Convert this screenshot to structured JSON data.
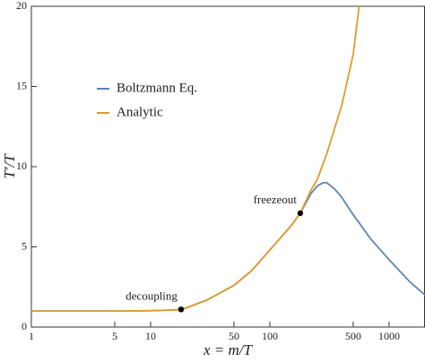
{
  "chart_data": {
    "type": "line",
    "xlabel": "x = m/T",
    "ylabel": "T′/T",
    "xscale": "log",
    "xlim": [
      1,
      2000
    ],
    "xticks": [
      1,
      5,
      10,
      50,
      100,
      500,
      1000
    ],
    "ylim": [
      0,
      20
    ],
    "yticks": [
      0,
      5,
      10,
      15,
      20
    ],
    "legend": "upper left",
    "x": [
      1,
      5,
      10,
      15,
      18,
      20,
      30,
      50,
      70,
      100,
      150,
      180,
      220,
      250,
      280,
      300,
      350,
      400,
      500,
      560,
      700,
      1000,
      1500,
      2000
    ],
    "series": [
      {
        "name": "Boltzmann Eq.",
        "color": "#5b84b8",
        "values": [
          1,
          1,
          1.02,
          1.06,
          1.1,
          1.2,
          1.7,
          2.6,
          3.5,
          4.8,
          6.3,
          7.1,
          8.3,
          8.8,
          9.0,
          9.0,
          8.6,
          8.1,
          7.0,
          6.5,
          5.5,
          4.2,
          2.8,
          2.0
        ]
      },
      {
        "name": "Analytic",
        "color": "#e09b2a",
        "values": [
          1,
          1,
          1.02,
          1.06,
          1.1,
          1.2,
          1.7,
          2.6,
          3.5,
          4.8,
          6.3,
          7.1,
          8.5,
          9.2,
          10.2,
          10.8,
          12.4,
          13.8,
          17,
          20,
          null,
          null,
          null,
          null
        ]
      }
    ],
    "annotations": [
      {
        "label": "decoupling",
        "x": 18,
        "y": 1.1
      },
      {
        "label": "freezeout",
        "x": 180,
        "y": 7.1
      }
    ]
  }
}
